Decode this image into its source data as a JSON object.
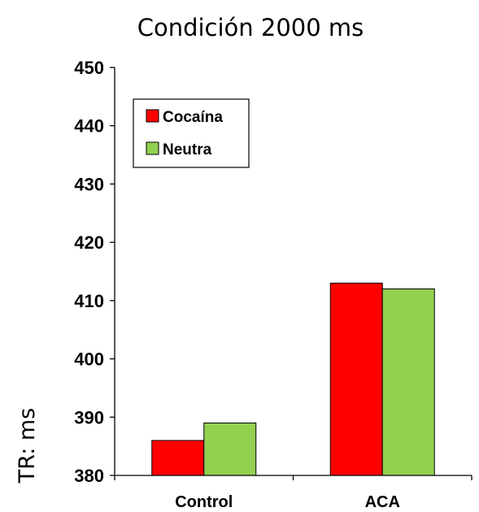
{
  "chart_data": {
    "type": "bar",
    "title": "Condición 2000 ms",
    "ylabel": "TR: ms",
    "xlabel": "",
    "categories": [
      "Control",
      "ACA"
    ],
    "series": [
      {
        "name": "Cocaína",
        "color": "#ff0000",
        "values": [
          386,
          413
        ]
      },
      {
        "name": "Neutra",
        "color": "#92d050",
        "values": [
          389,
          412
        ]
      }
    ],
    "ylim": [
      380,
      450
    ],
    "yticks": [
      380,
      390,
      400,
      410,
      420,
      430,
      440,
      450
    ],
    "grid": false,
    "legend_position": "top-left"
  }
}
